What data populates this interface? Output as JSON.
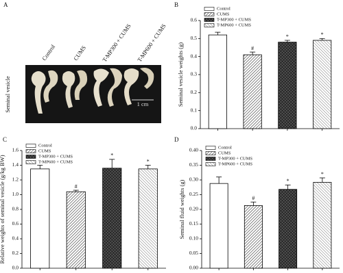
{
  "panel_a": {
    "panel": "A",
    "side_label": "Seminal vesicle",
    "groups": [
      "Control",
      "CUMS",
      "T-MP300 + CUMS",
      "T-MP600 + CUMS"
    ],
    "scale_label": "1 cm"
  },
  "chart_data": [
    {
      "type": "bar",
      "panel": "B",
      "y_label": "Seminal vesicle weights (g)",
      "ylim": [
        0,
        0.6
      ],
      "yticks": [
        {
          "value": 0,
          "label": "0.0"
        },
        0.1,
        0.2,
        0.3,
        0.4,
        0.5,
        0.6
      ],
      "series": [
        {
          "name": "Control",
          "pattern": "none",
          "values": [
            0.52
          ],
          "errors": [
            0.015
          ]
        },
        {
          "name": "CUMS",
          "pattern": "diagonal",
          "values": [
            0.41
          ],
          "errors": [
            0.015
          ],
          "annotation": "#"
        },
        {
          "name": "T-MP300 + CUMS",
          "pattern": "crosshatch",
          "values": [
            0.48
          ],
          "errors": [
            0.01
          ],
          "annotation": "*"
        },
        {
          "name": "T-MP600 + CUMS",
          "pattern": "diagonal-light",
          "values": [
            0.49
          ],
          "errors": [
            0.01
          ],
          "annotation": "*"
        }
      ]
    },
    {
      "type": "bar",
      "panel": "C",
      "y_label": "Relative weights of seminal vesicle (g/kg BW)",
      "ylim": [
        0,
        1.6
      ],
      "yticks": [
        {
          "value": 0,
          "label": "0.0"
        },
        0.2,
        0.4,
        0.6,
        0.8,
        {
          "value": 1,
          "label": "1.0"
        },
        1.2,
        1.4,
        1.6
      ],
      "series": [
        {
          "name": "Control",
          "pattern": "none",
          "values": [
            1.35
          ],
          "errors": [
            0.05
          ]
        },
        {
          "name": "CUMS",
          "pattern": "diagonal",
          "values": [
            1.04
          ],
          "errors": [
            0.02
          ],
          "annotation": "#"
        },
        {
          "name": "T-MP300 + CUMS",
          "pattern": "crosshatch",
          "values": [
            1.36
          ],
          "errors": [
            0.12
          ],
          "annotation": "*"
        },
        {
          "name": "T-MP600 + CUMS",
          "pattern": "diagonal-light",
          "values": [
            1.35
          ],
          "errors": [
            0.05
          ],
          "annotation": "*"
        }
      ]
    },
    {
      "type": "bar",
      "panel": "D",
      "y_label": "Seminal fluid weights (g)",
      "ylim": [
        0,
        0.4
      ],
      "yticks": [
        {
          "value": 0,
          "label": "0.00"
        },
        0.05,
        {
          "value": 0.1,
          "label": "0.10"
        },
        0.15,
        {
          "value": 0.2,
          "label": "0.20"
        },
        0.25,
        {
          "value": 0.3,
          "label": "0.30"
        },
        0.35,
        {
          "value": 0.4,
          "label": "0.40"
        }
      ],
      "series": [
        {
          "name": "Control",
          "pattern": "none",
          "values": [
            0.288
          ],
          "errors": [
            0.022
          ]
        },
        {
          "name": "CUMS",
          "pattern": "diagonal",
          "values": [
            0.213
          ],
          "errors": [
            0.012
          ],
          "annotation": "#"
        },
        {
          "name": "T-MP300 + CUMS",
          "pattern": "crosshatch",
          "values": [
            0.268
          ],
          "errors": [
            0.015
          ],
          "annotation": "*"
        },
        {
          "name": "T-MP600 + CUMS",
          "pattern": "diagonal-light",
          "values": [
            0.292
          ],
          "errors": [
            0.015
          ],
          "annotation": "*"
        }
      ]
    }
  ]
}
